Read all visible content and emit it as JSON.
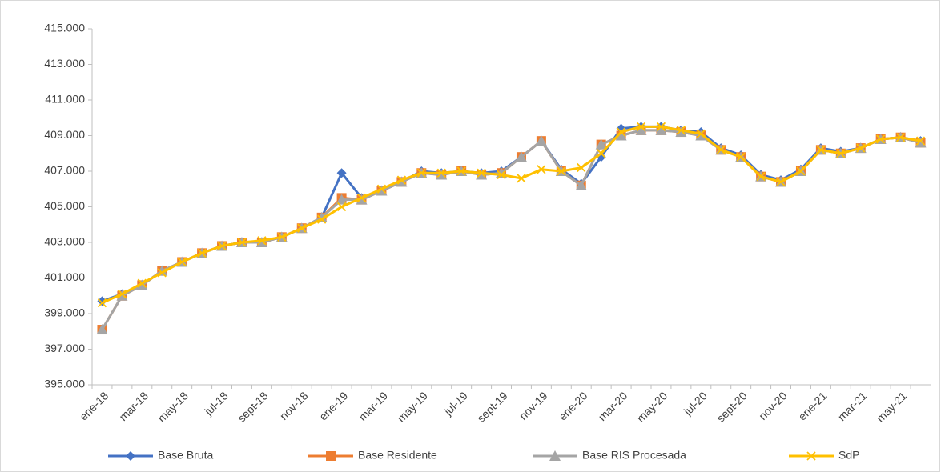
{
  "chart_data": {
    "type": "line",
    "categories": [
      "ene-18",
      null,
      "mar-18",
      null,
      "may-18",
      null,
      "jul-18",
      null,
      "sept-18",
      null,
      "nov-18",
      null,
      "ene-19",
      null,
      "mar-19",
      null,
      "may-19",
      null,
      "jul-19",
      null,
      "sept-19",
      null,
      "nov-19",
      null,
      "ene-20",
      null,
      "mar-20",
      null,
      "may-20",
      null,
      "jul-20",
      null,
      "sept-20",
      null,
      "nov-20",
      null,
      "ene-21",
      null,
      "mar-21",
      null,
      "may-21",
      null
    ],
    "series": [
      {
        "name": "Base Bruta",
        "color": "#4472c4",
        "marker": "diamond",
        "values": [
          399700,
          400100,
          400600,
          401400,
          401900,
          402400,
          402800,
          403000,
          403000,
          403300,
          403800,
          404400,
          406900,
          405500,
          405900,
          406400,
          407000,
          406900,
          407000,
          406900,
          407000,
          407800,
          408700,
          407100,
          406300,
          407800,
          409400,
          409500,
          409500,
          409300,
          409200,
          408300,
          407900,
          406800,
          406500,
          407100,
          408300,
          408100,
          408300,
          408800,
          408900,
          408700
        ]
      },
      {
        "name": "Base Residente",
        "color": "#ed7d31",
        "marker": "square",
        "values": [
          398100,
          400000,
          400600,
          401400,
          401900,
          402400,
          402800,
          403000,
          403000,
          403300,
          403800,
          404400,
          405500,
          405400,
          405900,
          406400,
          406900,
          406800,
          407000,
          406800,
          406900,
          407800,
          408700,
          407000,
          406200,
          408500,
          409000,
          409300,
          409300,
          409200,
          409000,
          408200,
          407800,
          406700,
          406400,
          407000,
          408200,
          408000,
          408300,
          408800,
          408900,
          408600
        ]
      },
      {
        "name": "Base RIS Procesada",
        "color": "#a5a5a5",
        "marker": "triangle",
        "values": [
          398100,
          400000,
          400600,
          401400,
          401900,
          402400,
          402800,
          403000,
          403000,
          403300,
          403800,
          404400,
          405400,
          405400,
          405900,
          406400,
          406900,
          406800,
          407000,
          406800,
          406900,
          407800,
          408700,
          407000,
          406200,
          408500,
          409000,
          409300,
          409300,
          409200,
          409000,
          408200,
          407800,
          406700,
          406400,
          407000,
          408200,
          408000,
          408300,
          408800,
          408900,
          408600
        ]
      },
      {
        "name": "SdP",
        "color": "#ffc000",
        "marker": "x",
        "values": [
          399600,
          400100,
          400700,
          401300,
          401900,
          402400,
          402800,
          403000,
          403100,
          403300,
          403800,
          404300,
          405000,
          405500,
          406000,
          406500,
          406900,
          406900,
          407000,
          406900,
          406800,
          406600,
          407100,
          407000,
          407200,
          408000,
          409200,
          409500,
          409500,
          409300,
          409100,
          408200,
          407800,
          406700,
          406400,
          407000,
          408200,
          408000,
          408300,
          408800,
          408900,
          408700
        ]
      }
    ],
    "ylim": [
      395000,
      415000
    ],
    "yticks": [
      {
        "value": 395000,
        "label": "395.000"
      },
      {
        "value": 397000,
        "label": "397.000"
      },
      {
        "value": 399000,
        "label": "399.000"
      },
      {
        "value": 401000,
        "label": "401.000"
      },
      {
        "value": 403000,
        "label": "403.000"
      },
      {
        "value": 405000,
        "label": "405.000"
      },
      {
        "value": 407000,
        "label": "407.000"
      },
      {
        "value": 409000,
        "label": "409.000"
      },
      {
        "value": 411000,
        "label": "411.000"
      },
      {
        "value": 413000,
        "label": "413.000"
      },
      {
        "value": 415000,
        "label": "415.000"
      }
    ],
    "grid": false,
    "legend": "bottom"
  }
}
